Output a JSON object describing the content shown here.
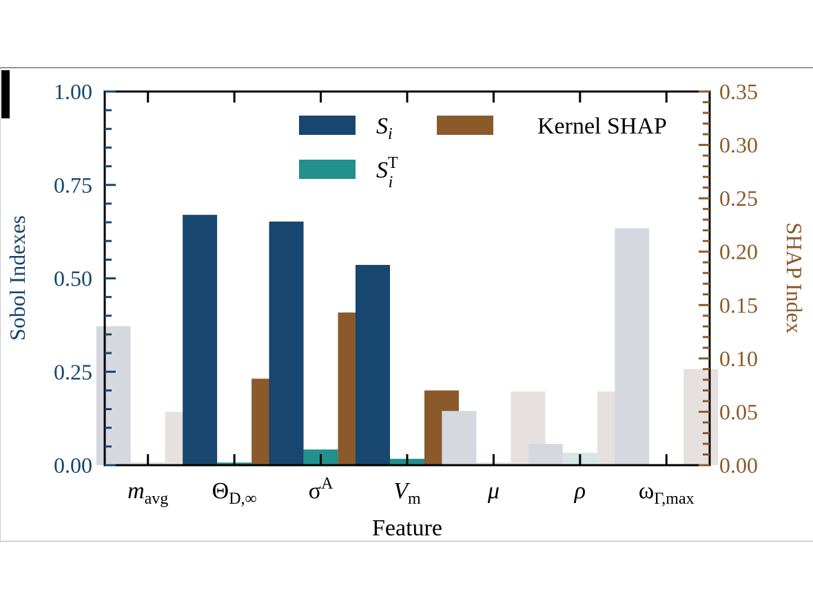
{
  "chart_data": {
    "type": "bar",
    "xlabel": "Feature",
    "ylabel_left": "Sobol Indexes",
    "ylabel_right": "SHAP Index",
    "ylim_left": [
      0,
      1.0
    ],
    "ylim_right": [
      0,
      0.35
    ],
    "yticks_left": [
      "0.00",
      "0.25",
      "0.50",
      "0.75",
      "1.00"
    ],
    "yticks_right": [
      "0.00",
      "0.05",
      "0.10",
      "0.15",
      "0.20",
      "0.25",
      "0.30",
      "0.35"
    ],
    "categories": [
      {
        "base": "m",
        "sub": "avg",
        "sup": "",
        "italic": true
      },
      {
        "base": "Θ",
        "sub": "D,∞",
        "sup": "",
        "italic": false
      },
      {
        "base": "σ",
        "sub": "",
        "sup": "A",
        "italic": false
      },
      {
        "base": "V",
        "sub": "m",
        "sup": "",
        "italic": true
      },
      {
        "base": "μ",
        "sub": "",
        "sup": "",
        "italic": true
      },
      {
        "base": "ρ",
        "sub": "",
        "sup": "",
        "italic": true
      },
      {
        "base": "ω",
        "sub": "Γ,max",
        "sup": "",
        "italic": false
      }
    ],
    "series": [
      {
        "name": "S_i",
        "label_base": "S",
        "label_sub": "i",
        "label_sup": "",
        "axis": "left",
        "color": "#17466e",
        "faded_color": "#d5d9df",
        "values": [
          0.372,
          0.67,
          0.652,
          0.536,
          0.145,
          0.057,
          0.634
        ]
      },
      {
        "name": "S_i^T",
        "label_base": "S",
        "label_sub": "i",
        "label_sup": "T",
        "axis": "left",
        "color": "#22908d",
        "faded_color": "#d6e6e6",
        "values": [
          0.008,
          0.007,
          0.042,
          0.017,
          0.007,
          0.033,
          0.003
        ]
      },
      {
        "name": "Kernel SHAP",
        "label_base": "Kernel SHAP",
        "label_sub": "",
        "label_sup": "",
        "axis": "right",
        "color": "#8b5a2b",
        "faded_color": "#e6e0de",
        "values": [
          0.05,
          0.081,
          0.143,
          0.07,
          0.069,
          0.069,
          0.09
        ]
      }
    ],
    "highlighted": [
      false,
      true,
      true,
      true,
      false,
      false,
      false
    ],
    "legend_placement": "top-center",
    "grid": false
  }
}
